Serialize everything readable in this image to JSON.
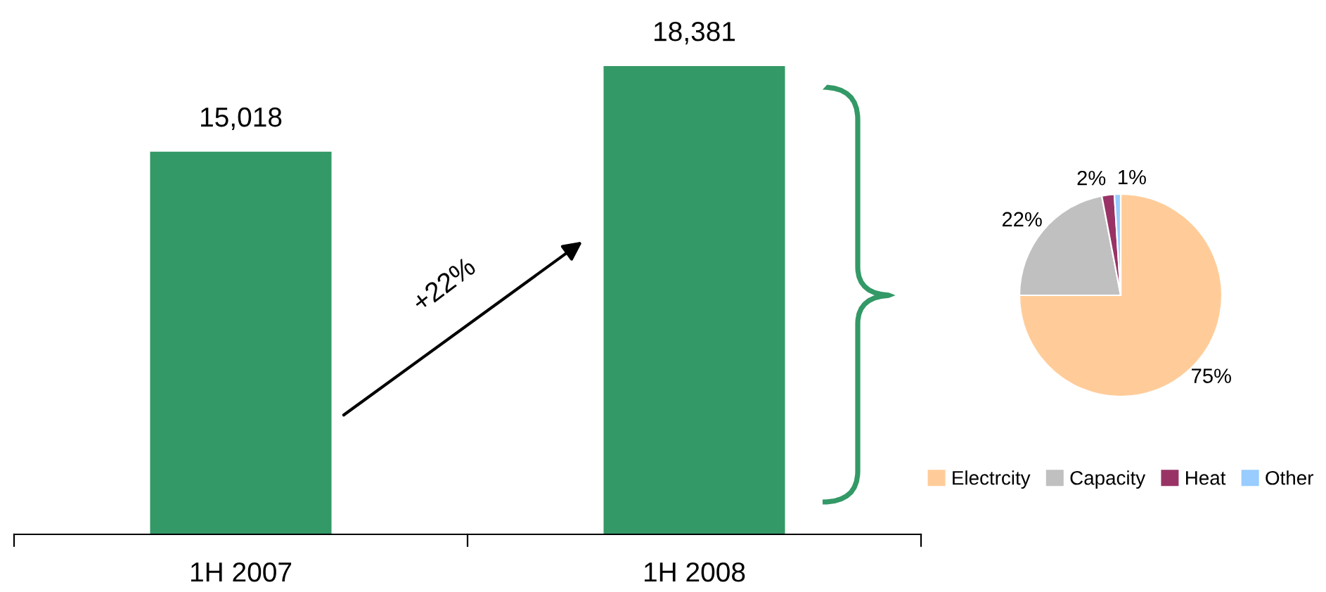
{
  "chart_data": [
    {
      "type": "bar",
      "categories": [
        "1H 2007",
        "1H 2008"
      ],
      "values": [
        15018,
        18381
      ],
      "value_labels": [
        "15,018",
        "18,381"
      ],
      "color": "#339966",
      "annotations": [
        "+22%"
      ]
    },
    {
      "type": "pie",
      "categories": [
        "Electrcity",
        "Capacity",
        "Heat",
        "Other"
      ],
      "values": [
        75,
        22,
        2,
        1
      ],
      "value_labels": [
        "75%",
        "22%",
        "2%",
        "1%"
      ],
      "colors": [
        "#ffcc99",
        "#c0c0c0",
        "#993366",
        "#99ccff"
      ],
      "legend": "bottom"
    }
  ]
}
